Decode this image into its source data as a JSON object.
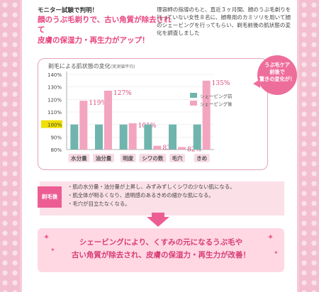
{
  "top": {
    "monitor_label": "モニター試験で判明！",
    "headline_line1": "顔のうぶ毛剃りで、古い角質が除去されて",
    "headline_line2": "皮膚の保湿力・再生力がアップ！",
    "description": "理容師の指導のもと、直近３ヶ月間、顔のうぶ毛剃りを行っていない女性８名に、顔専用のカミソリを用いて顔のシェービングを行ってもらい、剃毛前後の肌状態の変化を調査しました"
  },
  "badge": {
    "line1": "うぶ毛ケア",
    "line2": "前後で",
    "line3": "驚きの変化が！"
  },
  "colors": {
    "before": "#6fb5ad",
    "after": "#f3a5bf",
    "highlight": "#f0e000",
    "accent": "#ec5e93"
  },
  "chart_data": {
    "type": "bar",
    "title": "剃毛による肌状態の変化",
    "subtitle": "(実測値平均)",
    "categories": [
      "水分量",
      "油分量",
      "明度",
      "シワの数",
      "毛穴",
      "きめ"
    ],
    "series": [
      {
        "name": "シェービング前",
        "values": [
          100,
          100,
          100,
          100,
          100,
          100
        ]
      },
      {
        "name": "シェービング後",
        "values": [
          119,
          127,
          101,
          83,
          82,
          135
        ]
      }
    ],
    "value_labels": [
      "119%",
      "127%",
      "101%",
      "83%",
      "82%",
      "135%"
    ],
    "y_ticks": [
      "80%",
      "90%",
      "100%",
      "110%",
      "120%",
      "130%",
      "140%"
    ],
    "y_tick_values": [
      80,
      90,
      100,
      110,
      120,
      130,
      140
    ],
    "ylim": [
      80,
      140
    ],
    "highlight_tick": "100%",
    "legend_position": "right"
  },
  "after": {
    "label": "剃毛後",
    "items": [
      "・肌の水分量・油分量が上昇し、みずみずしくシワの少ない肌になる。",
      "・肌全体が明るくなり、透明感のあるきめの細かな肌になる。",
      "・毛穴が目立たなくなる。"
    ]
  },
  "conclusion": {
    "line1": "シェービングにより、くすみの元になるうぶ毛や",
    "line2": "古い角質が除去され、皮膚の保湿力・再生力が改善！"
  }
}
